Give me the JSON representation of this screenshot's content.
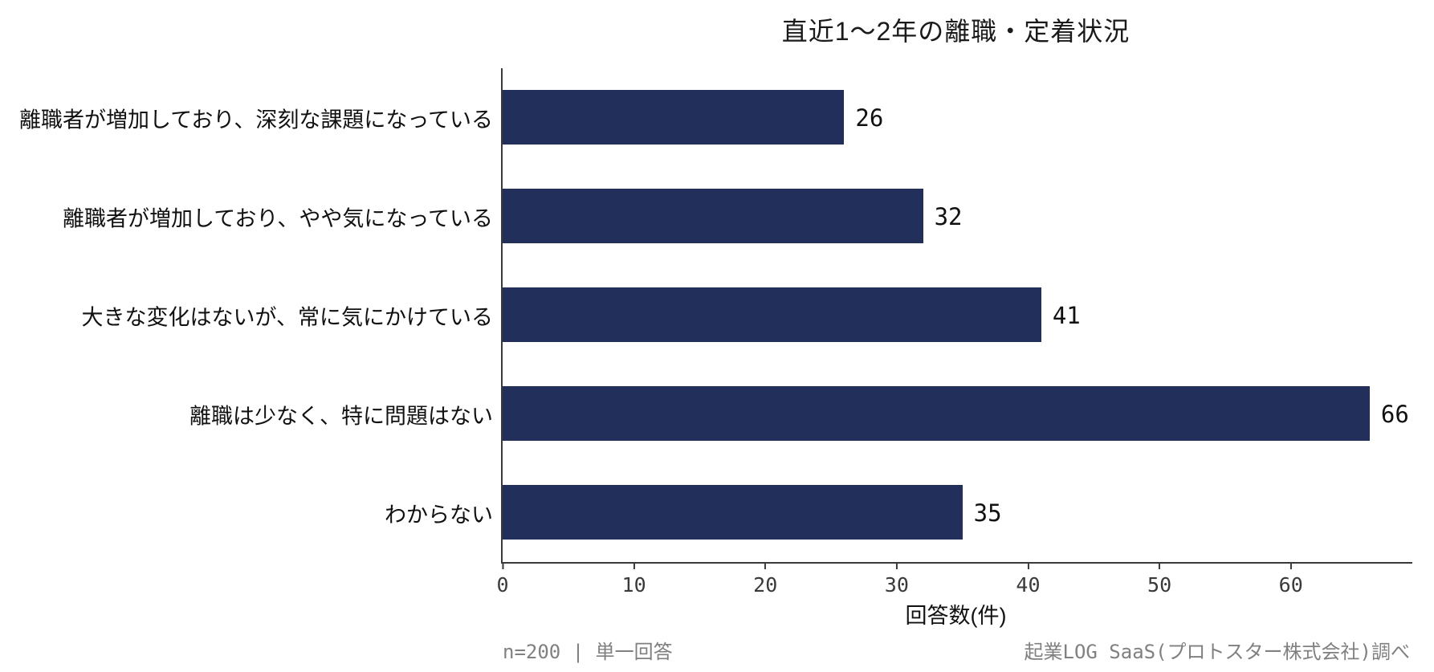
{
  "title": "直近1〜2年の離職・定着状況",
  "chart_data": {
    "type": "bar",
    "orientation": "horizontal",
    "title": "直近1〜2年の離職・定着状況",
    "categories": [
      "離職者が増加しており、深刻な課題になっている",
      "離職者が増加しており、やや気になっている",
      "大きな変化はないが、常に気にかけている",
      "離職は少なく、特に問題はない",
      "わからない"
    ],
    "values": [
      26,
      32,
      41,
      66,
      35
    ],
    "xlabel": "回答数(件)",
    "ylabel": "",
    "xlim": [
      0,
      69
    ],
    "xticks": [
      0,
      10,
      20,
      30,
      40,
      50,
      60
    ],
    "grid": false,
    "legend": null,
    "bar_color": "#222f5b",
    "axis_color": "#3a3a3a"
  },
  "footer": {
    "left": "n=200 | 単一回答",
    "right": "起業LOG SaaS(プロトスター株式会社)調べ"
  }
}
